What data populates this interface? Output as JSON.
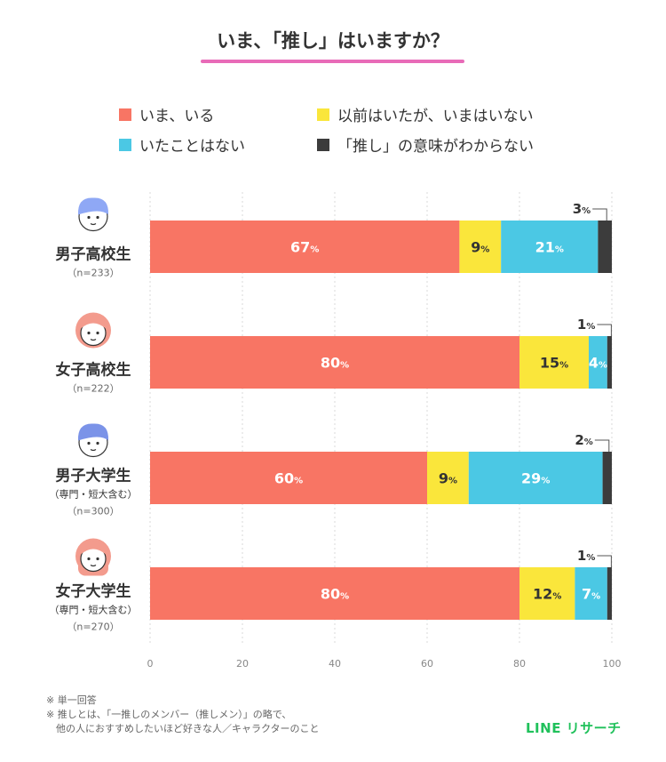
{
  "title": "いま、「推し」はいますか？",
  "chart_data": {
    "type": "bar",
    "orientation": "horizontal",
    "stacked": true,
    "title": "いま、「推し」はいますか？",
    "categories": [
      {
        "name": "男子高校生",
        "sub": "",
        "n": "（n=233）",
        "icon": "boy-student-icon"
      },
      {
        "name": "女子高校生",
        "sub": "",
        "n": "（n=222）",
        "icon": "girl-student-icon"
      },
      {
        "name": "男子大学生",
        "sub": "（専門・短大含む）",
        "n": "（n=300）",
        "icon": "boy-university-icon"
      },
      {
        "name": "女子大学生",
        "sub": "（専門・短大含む）",
        "n": "（n=270）",
        "icon": "girl-university-icon"
      }
    ],
    "series": [
      {
        "name": "いま、いる",
        "color": "#f87564",
        "values": [
          67,
          80,
          60,
          80
        ]
      },
      {
        "name": "以前はいたが、いまはいない",
        "color": "#fae63b",
        "values": [
          9,
          15,
          9,
          12
        ]
      },
      {
        "name": "いたことはない",
        "color": "#4bc8e4",
        "values": [
          21,
          4,
          29,
          7
        ]
      },
      {
        "name": "「推し」の意味がわからない",
        "color": "#3c3c3c",
        "values": [
          3,
          1,
          2,
          1
        ]
      }
    ],
    "xlim": [
      0,
      100
    ],
    "xticks": [
      0,
      20,
      40,
      60,
      80,
      100
    ],
    "unit": "%",
    "legend": "top",
    "grid": true
  },
  "footnotes": [
    "※ 単一回答",
    "※ 推しとは、「一推しのメンバー（推しメン）」の略で、",
    "　他の人におすすめしたいほど好きな人／キャラクターのこと"
  ],
  "brand": "LINE リサーチ"
}
